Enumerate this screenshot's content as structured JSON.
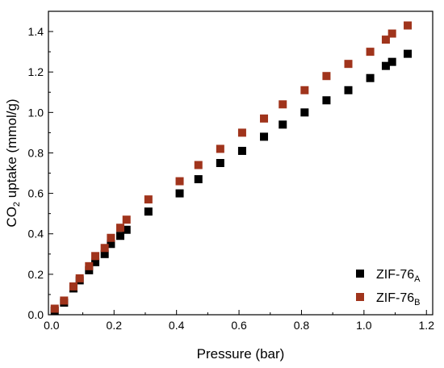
{
  "chart_data": {
    "type": "scatter",
    "xlabel": "Pressure (bar)",
    "ylabel": {
      "pre": "CO",
      "sub": "2",
      "post": " uptake (mmol/g)"
    },
    "xlim": [
      -0.01,
      1.22
    ],
    "ylim": [
      0,
      1.5
    ],
    "x_ticks": [
      "0.0",
      "0.2",
      "0.4",
      "0.6",
      "0.8",
      "1.0",
      "1.2"
    ],
    "y_ticks": [
      "0.0",
      "0.2",
      "0.4",
      "0.6",
      "0.8",
      "1.0",
      "1.2",
      "1.4"
    ],
    "grid": false,
    "legend_position": "bottom-right",
    "series": [
      {
        "name": "ZIF-76",
        "subscript": "A",
        "color": "#000000",
        "marker": "square",
        "points": [
          [
            0.01,
            0.02
          ],
          [
            0.04,
            0.06
          ],
          [
            0.07,
            0.13
          ],
          [
            0.09,
            0.17
          ],
          [
            0.12,
            0.22
          ],
          [
            0.14,
            0.26
          ],
          [
            0.17,
            0.3
          ],
          [
            0.19,
            0.35
          ],
          [
            0.22,
            0.39
          ],
          [
            0.24,
            0.42
          ],
          [
            0.31,
            0.51
          ],
          [
            0.41,
            0.6
          ],
          [
            0.47,
            0.67
          ],
          [
            0.54,
            0.75
          ],
          [
            0.61,
            0.81
          ],
          [
            0.68,
            0.88
          ],
          [
            0.74,
            0.94
          ],
          [
            0.81,
            1.0
          ],
          [
            0.88,
            1.06
          ],
          [
            0.95,
            1.11
          ],
          [
            1.02,
            1.17
          ],
          [
            1.07,
            1.23
          ],
          [
            1.09,
            1.25
          ],
          [
            1.14,
            1.29
          ]
        ]
      },
      {
        "name": "ZIF-76",
        "subscript": "B",
        "color": "#a0341c",
        "marker": "square",
        "points": [
          [
            0.01,
            0.03
          ],
          [
            0.04,
            0.07
          ],
          [
            0.07,
            0.14
          ],
          [
            0.09,
            0.18
          ],
          [
            0.12,
            0.24
          ],
          [
            0.14,
            0.29
          ],
          [
            0.17,
            0.33
          ],
          [
            0.19,
            0.38
          ],
          [
            0.22,
            0.43
          ],
          [
            0.24,
            0.47
          ],
          [
            0.31,
            0.57
          ],
          [
            0.41,
            0.66
          ],
          [
            0.47,
            0.74
          ],
          [
            0.54,
            0.82
          ],
          [
            0.61,
            0.9
          ],
          [
            0.68,
            0.97
          ],
          [
            0.74,
            1.04
          ],
          [
            0.81,
            1.11
          ],
          [
            0.88,
            1.18
          ],
          [
            0.95,
            1.24
          ],
          [
            1.02,
            1.3
          ],
          [
            1.07,
            1.36
          ],
          [
            1.09,
            1.39
          ],
          [
            1.14,
            1.43
          ]
        ]
      }
    ]
  }
}
